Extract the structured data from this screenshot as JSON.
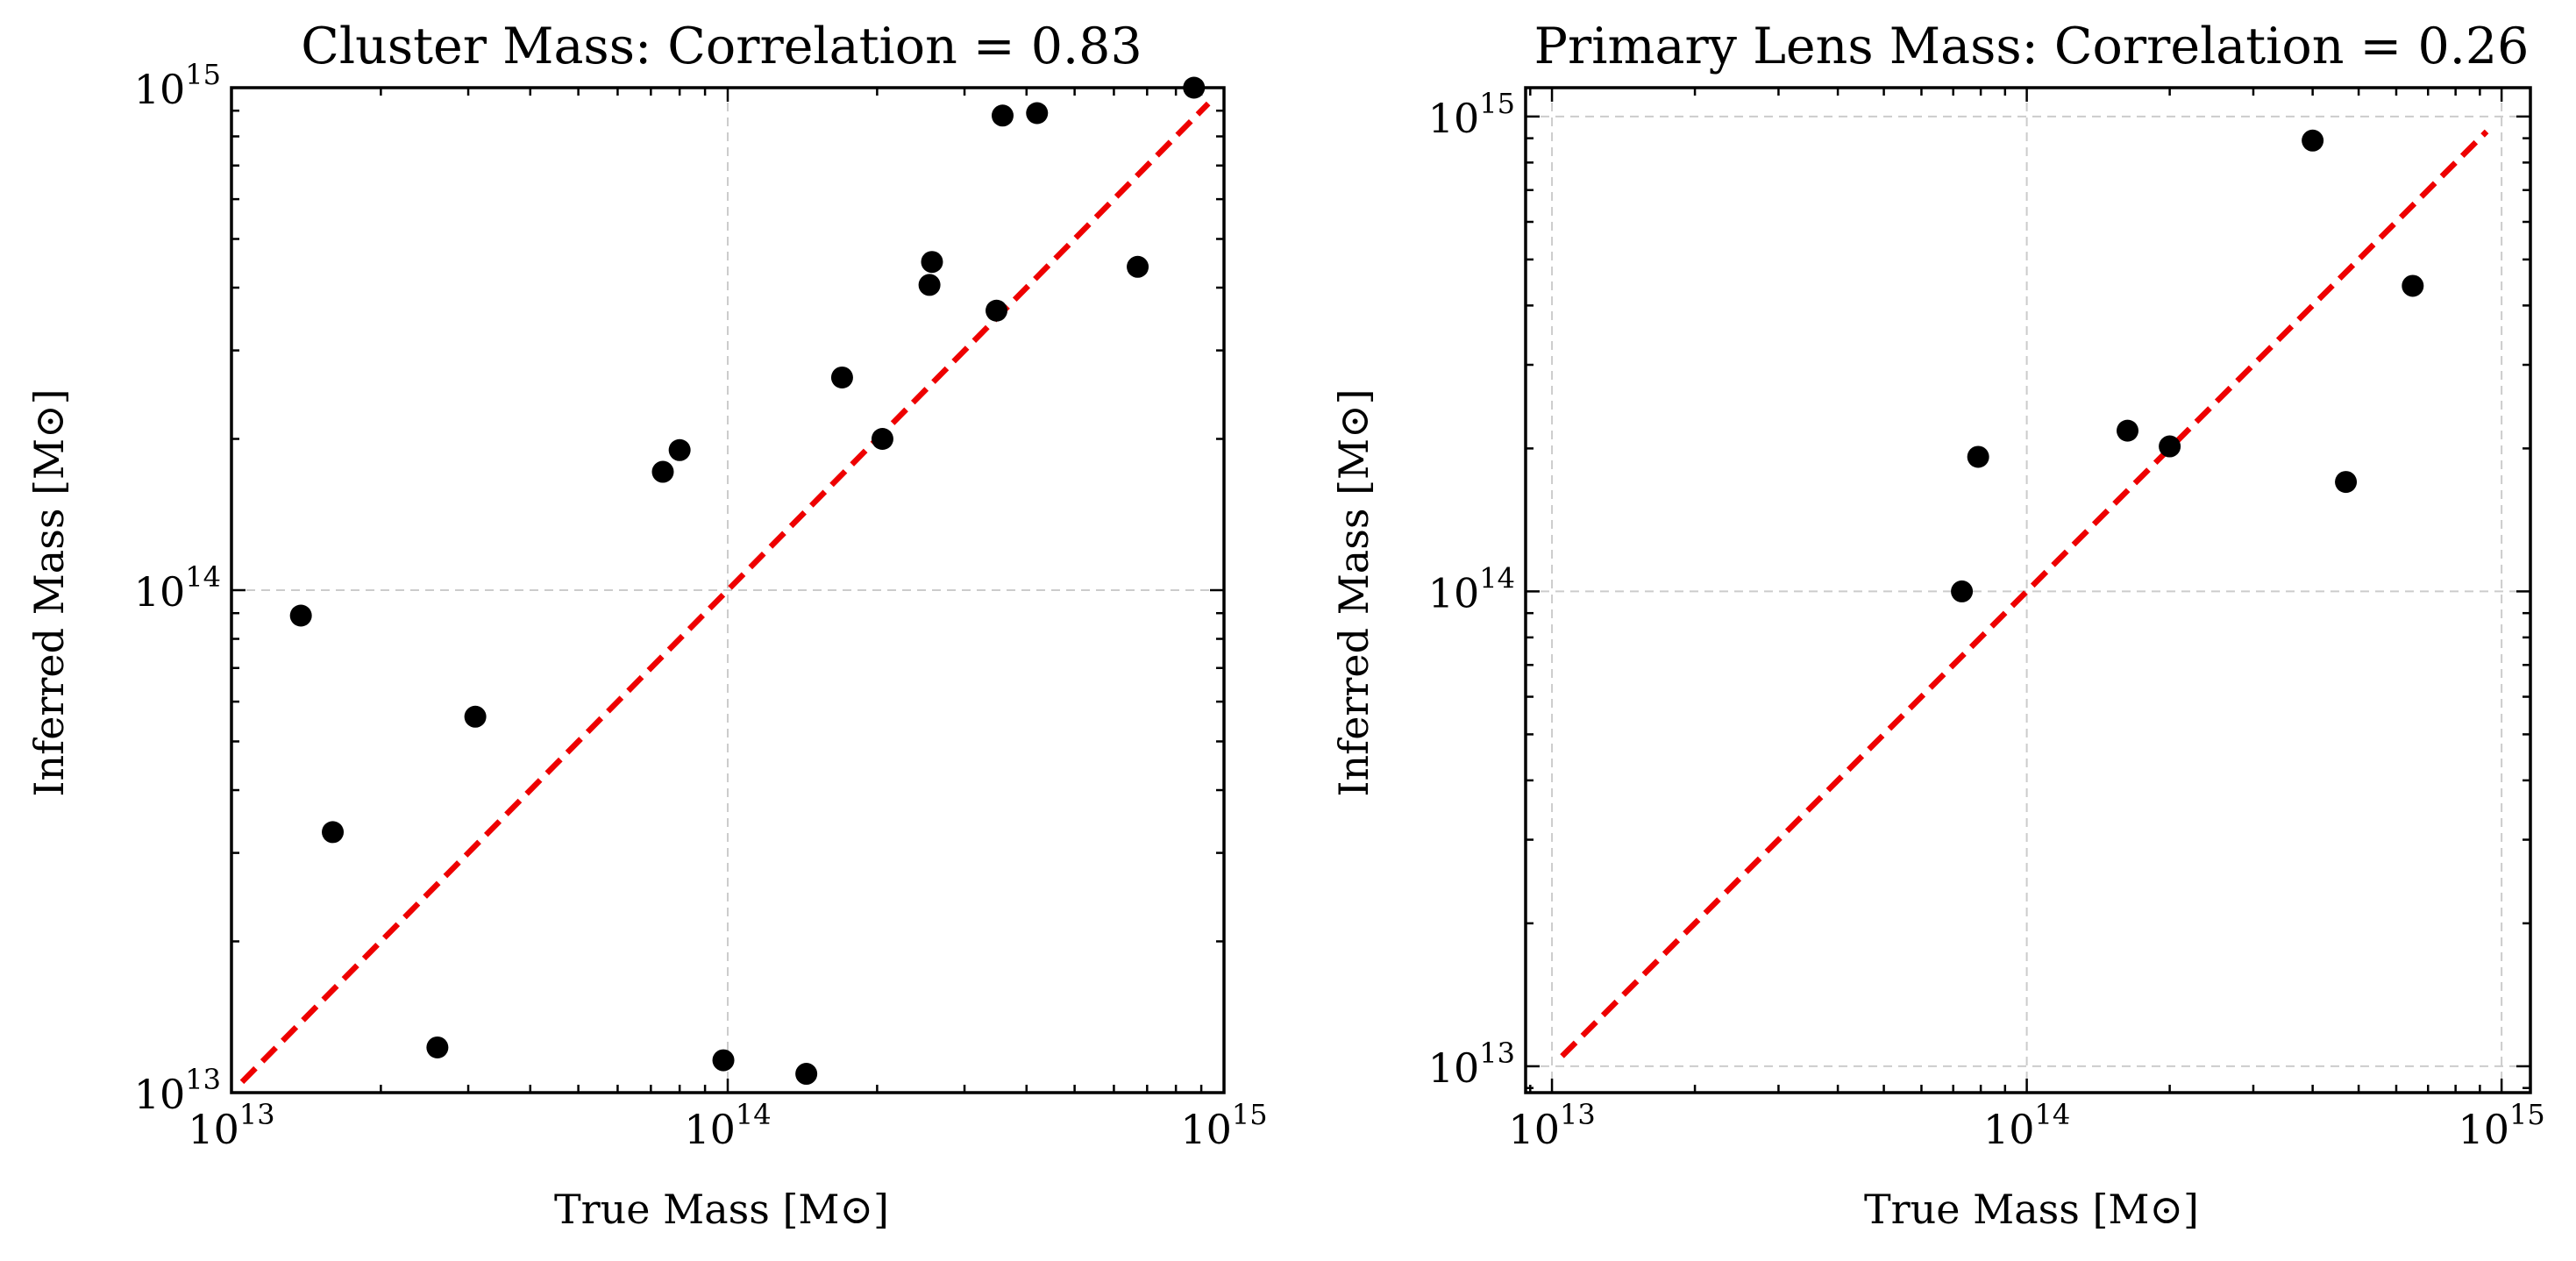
{
  "chart_data": [
    {
      "type": "scatter",
      "title": "Cluster Mass: Correlation = 0.83",
      "xlabel": "True Mass [M⊙]",
      "ylabel": "Inferred Mass [M⊙]",
      "xscale": "log",
      "yscale": "log",
      "xlim": [
        10000000000000.0,
        1000000000000000.0
      ],
      "ylim": [
        10000000000000.0,
        1000000000000000.0
      ],
      "grid": true,
      "reference_line": {
        "x": [
          10500000000000.0,
          930000000000000.0
        ],
        "y": [
          10500000000000.0,
          930000000000000.0
        ],
        "color": "#ee0000",
        "style": "dashed"
      },
      "marker_color": "#000000",
      "x_ticks": [
        {
          "value": 10000000000000.0,
          "base": "10",
          "exp": "13"
        },
        {
          "value": 100000000000000.0,
          "base": "10",
          "exp": "14"
        },
        {
          "value": 1000000000000000.0,
          "base": "10",
          "exp": "15"
        }
      ],
      "y_ticks": [
        {
          "value": 10000000000000.0,
          "base": "10",
          "exp": "13"
        },
        {
          "value": 100000000000000.0,
          "base": "10",
          "exp": "14"
        },
        {
          "value": 1000000000000000.0,
          "base": "10",
          "exp": "15"
        }
      ],
      "points": [
        {
          "x": 13800000000000.0,
          "y": 89000000000000.0
        },
        {
          "x": 16000000000000.0,
          "y": 33000000000000.0
        },
        {
          "x": 26000000000000.0,
          "y": 12300000000000.0
        },
        {
          "x": 31000000000000.0,
          "y": 56000000000000.0
        },
        {
          "x": 74000000000000.0,
          "y": 172000000000000.0
        },
        {
          "x": 80000000000000.0,
          "y": 190000000000000.0
        },
        {
          "x": 98000000000000.0,
          "y": 11600000000000.0
        },
        {
          "x": 144000000000000.0,
          "y": 10900000000000.0
        },
        {
          "x": 170000000000000.0,
          "y": 265000000000000.0
        },
        {
          "x": 205000000000000.0,
          "y": 200000000000000.0
        },
        {
          "x": 255000000000000.0,
          "y": 405000000000000.0
        },
        {
          "x": 258000000000000.0,
          "y": 450000000000000.0
        },
        {
          "x": 348000000000000.0,
          "y": 360000000000000.0
        },
        {
          "x": 358000000000000.0,
          "y": 880000000000000.0
        },
        {
          "x": 420000000000000.0,
          "y": 890000000000000.0
        },
        {
          "x": 670000000000000.0,
          "y": 440000000000000.0
        },
        {
          "x": 870000000000000.0,
          "y": 1000000000000000.0
        }
      ]
    },
    {
      "type": "scatter",
      "title": "Primary Lens Mass: Correlation = 0.26",
      "xlabel": "True Mass [M⊙]",
      "ylabel": "Inferred Mass [M⊙]",
      "xscale": "log",
      "yscale": "log",
      "xlim": [
        8800000000000.0,
        1150000000000000.0
      ],
      "ylim": [
        8800000000000.0,
        1150000000000000.0
      ],
      "grid": true,
      "reference_line": {
        "x": [
          10500000000000.0,
          930000000000000.0
        ],
        "y": [
          10500000000000.0,
          930000000000000.0
        ],
        "color": "#ee0000",
        "style": "dashed"
      },
      "marker_color": "#000000",
      "x_ticks": [
        {
          "value": 10000000000000.0,
          "base": "10",
          "exp": "13"
        },
        {
          "value": 100000000000000.0,
          "base": "10",
          "exp": "14"
        },
        {
          "value": 1000000000000000.0,
          "base": "10",
          "exp": "15"
        }
      ],
      "y_ticks": [
        {
          "value": 10000000000000.0,
          "base": "10",
          "exp": "13"
        },
        {
          "value": 100000000000000.0,
          "base": "10",
          "exp": "14"
        },
        {
          "value": 1000000000000000.0,
          "base": "10",
          "exp": "15"
        }
      ],
      "points": [
        {
          "x": 73000000000000.0,
          "y": 100000000000000.0
        },
        {
          "x": 79000000000000.0,
          "y": 192000000000000.0
        },
        {
          "x": 163000000000000.0,
          "y": 218000000000000.0
        },
        {
          "x": 200000000000000.0,
          "y": 202000000000000.0
        },
        {
          "x": 400000000000000.0,
          "y": 890000000000000.0
        },
        {
          "x": 470000000000000.0,
          "y": 170000000000000.0
        },
        {
          "x": 650000000000000.0,
          "y": 440000000000000.0
        }
      ]
    }
  ]
}
